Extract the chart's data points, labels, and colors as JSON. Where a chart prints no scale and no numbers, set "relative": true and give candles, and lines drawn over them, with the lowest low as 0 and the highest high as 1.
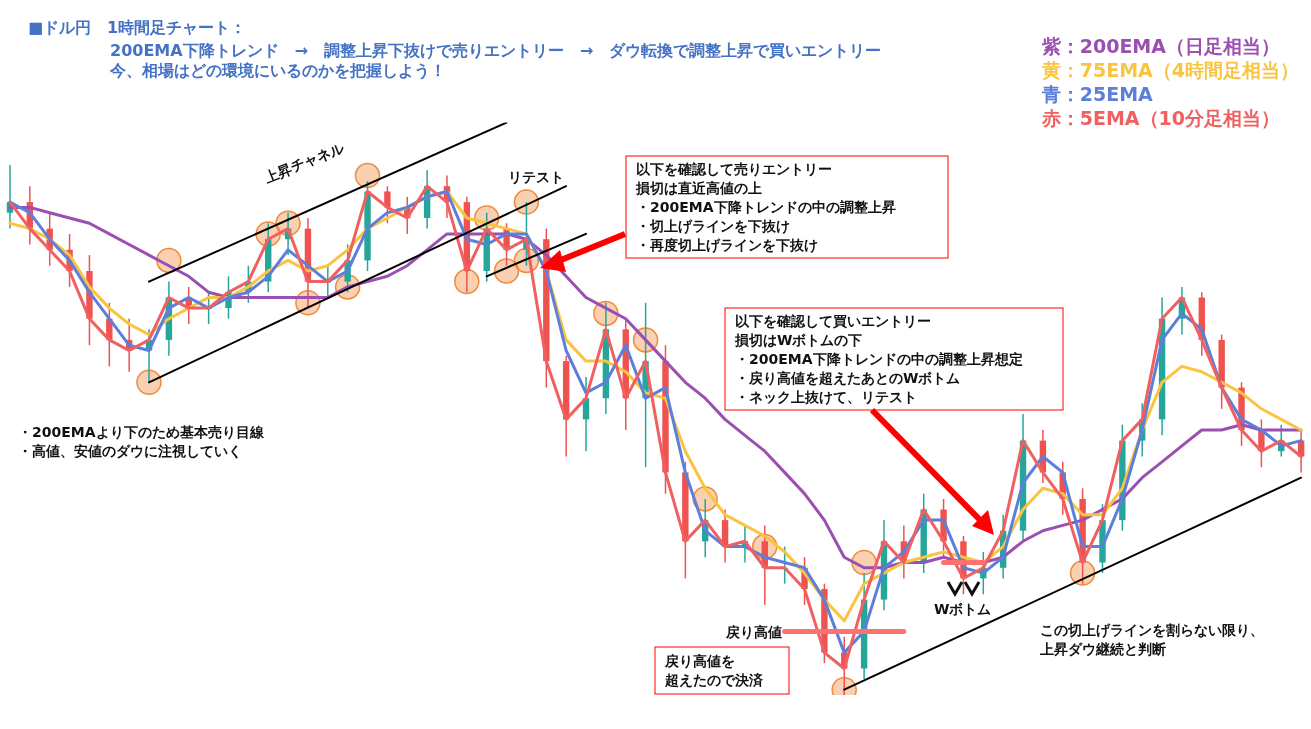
{
  "chart_data": {
    "type": "candlestick",
    "title": "■ドル円　1時間足チャート：",
    "subtitle": "200EMA下降トレンド　→　調整上昇下抜けで売りエントリー　→　ダウ転換で調整上昇で買いエントリー",
    "relative": true,
    "legend": "top right",
    "categories": [
      null,
      null,
      null,
      null,
      null,
      null,
      null,
      null,
      null,
      null,
      null,
      null,
      null,
      null,
      null,
      null,
      null,
      null,
      null,
      null,
      null,
      null,
      null,
      null,
      null,
      null,
      null,
      null,
      null,
      null,
      null,
      null,
      null,
      null,
      null,
      null,
      null,
      null,
      null,
      null,
      null,
      null,
      null,
      null,
      null,
      null,
      null,
      null,
      null,
      null,
      null,
      null,
      null,
      null,
      null,
      null,
      null,
      null,
      null,
      null,
      null,
      null,
      null,
      null,
      null,
      null
    ],
    "ohlc": [
      [
        0.91,
        1.0,
        0.88,
        0.93
      ],
      [
        0.93,
        0.96,
        0.85,
        0.88
      ],
      [
        0.88,
        0.91,
        0.81,
        0.84
      ],
      [
        0.84,
        0.87,
        0.77,
        0.8
      ],
      [
        0.8,
        0.83,
        0.66,
        0.71
      ],
      [
        0.71,
        0.74,
        0.62,
        0.67
      ],
      [
        0.67,
        0.71,
        0.61,
        0.65
      ],
      [
        0.65,
        0.69,
        0.59,
        0.67
      ],
      [
        0.67,
        0.78,
        0.64,
        0.75
      ],
      [
        0.75,
        0.77,
        0.7,
        0.73
      ],
      [
        0.73,
        0.76,
        0.7,
        0.73
      ],
      [
        0.73,
        0.79,
        0.71,
        0.76
      ],
      [
        0.76,
        0.81,
        0.74,
        0.78
      ],
      [
        0.78,
        0.89,
        0.76,
        0.86
      ],
      [
        0.86,
        0.91,
        0.83,
        0.88
      ],
      [
        0.88,
        0.9,
        0.73,
        0.78
      ],
      [
        0.78,
        0.81,
        0.75,
        0.78
      ],
      [
        0.78,
        0.85,
        0.76,
        0.82
      ],
      [
        0.82,
        0.97,
        0.8,
        0.95
      ],
      [
        0.95,
        0.96,
        0.89,
        0.92
      ],
      [
        0.92,
        0.94,
        0.87,
        0.9
      ],
      [
        0.9,
        0.99,
        0.88,
        0.96
      ],
      [
        0.96,
        0.98,
        0.9,
        0.93
      ],
      [
        0.93,
        0.94,
        0.76,
        0.8
      ],
      [
        0.8,
        0.91,
        0.78,
        0.88
      ],
      [
        0.88,
        0.89,
        0.81,
        0.84
      ],
      [
        0.84,
        0.93,
        0.81,
        0.86
      ],
      [
        0.86,
        0.88,
        0.58,
        0.63
      ],
      [
        0.63,
        0.64,
        0.45,
        0.52
      ],
      [
        0.52,
        0.6,
        0.46,
        0.56
      ],
      [
        0.56,
        0.74,
        0.53,
        0.69
      ],
      [
        0.69,
        0.71,
        0.5,
        0.56
      ],
      [
        0.56,
        0.74,
        0.43,
        0.63
      ],
      [
        0.63,
        0.66,
        0.38,
        0.42
      ],
      [
        0.42,
        0.44,
        0.22,
        0.29
      ],
      [
        0.29,
        0.37,
        0.26,
        0.33
      ],
      [
        0.33,
        0.35,
        0.25,
        0.28
      ],
      [
        0.28,
        0.32,
        0.25,
        0.29
      ],
      [
        0.29,
        0.32,
        0.17,
        0.24
      ],
      [
        0.24,
        0.28,
        0.21,
        0.24
      ],
      [
        0.24,
        0.26,
        0.17,
        0.2
      ],
      [
        0.2,
        0.21,
        0.06,
        0.08
      ],
      [
        0.08,
        0.11,
        0.0,
        0.05
      ],
      [
        0.05,
        0.23,
        0.03,
        0.18
      ],
      [
        0.18,
        0.33,
        0.16,
        0.29
      ],
      [
        0.29,
        0.32,
        0.22,
        0.25
      ],
      [
        0.25,
        0.38,
        0.23,
        0.35
      ],
      [
        0.35,
        0.37,
        0.26,
        0.29
      ],
      [
        0.29,
        0.3,
        0.19,
        0.22
      ],
      [
        0.22,
        0.27,
        0.19,
        0.24
      ],
      [
        0.24,
        0.34,
        0.22,
        0.31
      ],
      [
        0.31,
        0.53,
        0.29,
        0.48
      ],
      [
        0.48,
        0.5,
        0.4,
        0.42
      ],
      [
        0.42,
        0.44,
        0.34,
        0.37
      ],
      [
        0.37,
        0.39,
        0.21,
        0.25
      ],
      [
        0.25,
        0.36,
        0.23,
        0.33
      ],
      [
        0.33,
        0.51,
        0.31,
        0.48
      ],
      [
        0.48,
        0.55,
        0.45,
        0.52
      ],
      [
        0.52,
        0.75,
        0.49,
        0.71
      ],
      [
        0.71,
        0.77,
        0.68,
        0.75
      ],
      [
        0.75,
        0.76,
        0.64,
        0.67
      ],
      [
        0.67,
        0.68,
        0.54,
        0.58
      ],
      [
        0.58,
        0.59,
        0.47,
        0.5
      ],
      [
        0.5,
        0.52,
        0.43,
        0.46
      ],
      [
        0.46,
        0.51,
        0.45,
        0.48
      ],
      [
        0.48,
        0.5,
        0.42,
        0.45
      ]
    ],
    "series": [
      {
        "type": "line",
        "name": "紫：200EMA（日足相当）",
        "color": "#9b4fb0",
        "values": [
          0.92,
          0.92,
          0.91,
          0.9,
          0.89,
          0.87,
          0.85,
          0.83,
          0.81,
          0.79,
          0.76,
          0.75,
          0.75,
          0.75,
          0.75,
          0.75,
          0.75,
          0.77,
          0.78,
          0.79,
          0.81,
          0.84,
          0.87,
          0.87,
          0.87,
          0.87,
          0.86,
          0.83,
          0.79,
          0.75,
          0.73,
          0.71,
          0.67,
          0.63,
          0.59,
          0.56,
          0.52,
          0.49,
          0.46,
          0.42,
          0.38,
          0.33,
          0.26,
          0.24,
          0.24,
          0.25,
          0.25,
          0.26,
          0.25,
          0.25,
          0.26,
          0.29,
          0.31,
          0.32,
          0.33,
          0.35,
          0.37,
          0.41,
          0.44,
          0.47,
          0.5,
          0.5,
          0.51,
          0.5,
          0.5,
          0.5
        ]
      },
      {
        "type": "line",
        "name": "黄：75EMA（4時間足相当）",
        "color": "#f9c440",
        "values": [
          0.89,
          0.88,
          0.86,
          0.83,
          0.77,
          0.73,
          0.7,
          0.68,
          0.71,
          0.73,
          0.75,
          0.75,
          0.77,
          0.8,
          0.82,
          0.8,
          0.81,
          0.84,
          0.88,
          0.9,
          0.92,
          0.94,
          0.95,
          0.9,
          0.89,
          0.88,
          0.87,
          0.8,
          0.67,
          0.63,
          0.63,
          0.61,
          0.57,
          0.56,
          0.46,
          0.39,
          0.34,
          0.32,
          0.3,
          0.27,
          0.23,
          0.18,
          0.14,
          0.21,
          0.23,
          0.25,
          0.26,
          0.27,
          0.26,
          0.25,
          0.28,
          0.35,
          0.39,
          0.38,
          0.34,
          0.34,
          0.39,
          0.5,
          0.59,
          0.62,
          0.61,
          0.59,
          0.57,
          0.54,
          0.52,
          0.5
        ]
      },
      {
        "type": "line",
        "name": "青：25EMA",
        "color": "#5b7fdb",
        "values": [
          0.93,
          0.91,
          0.86,
          0.82,
          0.76,
          0.71,
          0.66,
          0.65,
          0.73,
          0.75,
          0.73,
          0.75,
          0.76,
          0.79,
          0.84,
          0.81,
          0.78,
          0.8,
          0.88,
          0.91,
          0.92,
          0.94,
          0.95,
          0.86,
          0.85,
          0.87,
          0.87,
          0.8,
          0.65,
          0.57,
          0.59,
          0.66,
          0.56,
          0.58,
          0.42,
          0.31,
          0.28,
          0.28,
          0.26,
          0.25,
          0.24,
          0.18,
          0.08,
          0.12,
          0.24,
          0.27,
          0.33,
          0.33,
          0.24,
          0.23,
          0.26,
          0.4,
          0.45,
          0.42,
          0.28,
          0.28,
          0.37,
          0.5,
          0.67,
          0.72,
          0.69,
          0.58,
          0.52,
          0.5,
          0.47,
          0.48
        ]
      },
      {
        "type": "line",
        "name": "赤：5EMA（10分足相当）",
        "color": "#f06060",
        "values": [
          0.93,
          0.88,
          0.84,
          0.8,
          0.71,
          0.67,
          0.65,
          0.67,
          0.75,
          0.73,
          0.73,
          0.76,
          0.78,
          0.86,
          0.88,
          0.78,
          0.78,
          0.82,
          0.95,
          0.92,
          0.9,
          0.96,
          0.93,
          0.8,
          0.88,
          0.84,
          0.86,
          0.63,
          0.52,
          0.56,
          0.69,
          0.56,
          0.63,
          0.42,
          0.29,
          0.33,
          0.28,
          0.29,
          0.24,
          0.24,
          0.2,
          0.08,
          0.05,
          0.18,
          0.29,
          0.25,
          0.35,
          0.29,
          0.22,
          0.24,
          0.31,
          0.48,
          0.42,
          0.37,
          0.25,
          0.33,
          0.48,
          0.52,
          0.71,
          0.75,
          0.67,
          0.58,
          0.5,
          0.46,
          0.48,
          0.45
        ]
      },
      {
        "type": "line",
        "color": "#000000",
        "values": [
          null,
          null,
          null,
          null,
          null,
          null,
          null,
          0.78,
          null,
          null,
          null,
          null,
          null,
          null,
          null,
          null,
          null,
          null,
          null,
          null,
          null,
          null,
          null,
          null,
          null,
          1.08,
          null,
          null,
          null,
          null,
          null,
          null,
          null,
          null,
          null,
          null,
          null,
          null,
          null,
          null,
          null,
          null,
          null,
          null,
          null,
          null,
          null,
          null,
          null,
          null,
          null,
          null,
          null,
          null,
          null,
          null,
          null,
          null,
          null,
          null,
          null,
          null,
          null,
          null,
          null,
          null
        ]
      },
      {
        "type": "line",
        "color": "#000000",
        "values": [
          null,
          null,
          null,
          null,
          null,
          null,
          null,
          0.59,
          null,
          null,
          null,
          null,
          null,
          null,
          null,
          null,
          null,
          null,
          null,
          null,
          null,
          null,
          null,
          null,
          null,
          null,
          null,
          null,
          0.96,
          null,
          null,
          null,
          null,
          null,
          null,
          null,
          null,
          null,
          null,
          null,
          null,
          null,
          null,
          null,
          null,
          null,
          null,
          null,
          null,
          null,
          null,
          null,
          null,
          null,
          null,
          null,
          null,
          null,
          null,
          null,
          null,
          null,
          null,
          null,
          null,
          null
        ]
      },
      {
        "type": "line",
        "color": "#000000",
        "values": [
          null,
          null,
          null,
          null,
          null,
          null,
          null,
          null,
          null,
          null,
          null,
          null,
          null,
          null,
          null,
          null,
          null,
          null,
          null,
          null,
          null,
          null,
          null,
          null,
          0.79,
          null,
          null,
          null,
          null,
          0.87,
          null,
          null,
          null,
          null,
          null,
          null,
          null,
          null,
          null,
          null,
          null,
          null,
          null,
          null,
          null,
          null,
          null,
          null,
          null,
          null,
          null,
          null,
          null,
          null,
          null,
          null,
          null,
          null,
          null,
          null,
          null,
          null,
          null,
          null,
          null,
          null
        ]
      },
      {
        "type": "line",
        "color": "#000000",
        "values": [
          null,
          null,
          null,
          null,
          null,
          null,
          null,
          null,
          null,
          null,
          null,
          null,
          null,
          null,
          null,
          null,
          null,
          null,
          null,
          null,
          null,
          null,
          null,
          null,
          null,
          null,
          null,
          null,
          null,
          null,
          null,
          null,
          null,
          null,
          null,
          null,
          null,
          null,
          null,
          null,
          null,
          null,
          0.01,
          null,
          null,
          null,
          null,
          null,
          null,
          null,
          null,
          null,
          null,
          null,
          null,
          null,
          null,
          null,
          null,
          null,
          null,
          null,
          null,
          null,
          null,
          0.41
        ]
      },
      {
        "type": "line",
        "color": "#ff7070",
        "values": [
          null,
          null,
          null,
          null,
          null,
          null,
          null,
          null,
          null,
          null,
          null,
          null,
          null,
          null,
          null,
          null,
          null,
          null,
          null,
          null,
          null,
          null,
          null,
          null,
          null,
          null,
          null,
          null,
          null,
          null,
          null,
          null,
          null,
          null,
          null,
          null,
          null,
          null,
          null,
          0.12,
          null,
          null,
          null,
          null,
          null,
          0.12,
          null,
          null,
          null,
          null,
          null,
          null,
          null,
          null,
          null,
          null,
          null,
          null,
          null,
          null,
          null,
          null,
          null,
          null,
          null,
          null
        ]
      },
      {
        "type": "line",
        "color": "#ff7070",
        "values": [
          null,
          null,
          null,
          null,
          null,
          null,
          null,
          null,
          null,
          null,
          null,
          null,
          null,
          null,
          null,
          null,
          null,
          null,
          null,
          null,
          null,
          null,
          null,
          null,
          null,
          null,
          null,
          null,
          null,
          null,
          null,
          null,
          null,
          null,
          null,
          null,
          null,
          null,
          null,
          null,
          null,
          null,
          null,
          null,
          null,
          null,
          null,
          0.25,
          null,
          0.25,
          null,
          null,
          null,
          null,
          null,
          null,
          null,
          null,
          null,
          null,
          null,
          null,
          null,
          null,
          null,
          null
        ]
      },
      {
        "type": "scatter",
        "marker": "circle",
        "color": "#f08a3c",
        "values": [
          null,
          null,
          null,
          null,
          null,
          null,
          null,
          0.59,
          0.82,
          null,
          null,
          null,
          null,
          0.87,
          0.89,
          0.74,
          null,
          0.77,
          0.98,
          null,
          null,
          null,
          null,
          0.78,
          0.9,
          0.8,
          0.82,
          null,
          null,
          null,
          0.72,
          null,
          0.67,
          null,
          null,
          0.37,
          null,
          null,
          0.28,
          null,
          null,
          null,
          0.01,
          0.25,
          null,
          null,
          null,
          null,
          null,
          null,
          null,
          null,
          null,
          null,
          0.23,
          null,
          null,
          null,
          null,
          null,
          null,
          null,
          null,
          null,
          null,
          null
        ]
      },
      {
        "type": "scatter",
        "marker": "circle",
        "color": "#f08a3c",
        "values": [
          null,
          null,
          null,
          null,
          null,
          null,
          null,
          null,
          null,
          null,
          null,
          null,
          null,
          null,
          null,
          null,
          null,
          null,
          null,
          null,
          null,
          null,
          null,
          null,
          null,
          null,
          0.93,
          null,
          null,
          null,
          null,
          null,
          null,
          null,
          null,
          null,
          null,
          null,
          null,
          null,
          null,
          null,
          null,
          null,
          null,
          null,
          null,
          null,
          null,
          null,
          null,
          null,
          null,
          null,
          null,
          null,
          null,
          null,
          null,
          null,
          null,
          null,
          null,
          null,
          null,
          null
        ]
      }
    ],
    "annotations": [
      "上昇チャネル",
      "リテスト",
      "以下を確認して売りエントリー",
      "損切は直近高値の上",
      "・200EMA下降トレンドの中の調整上昇",
      "・切上げラインを下抜け",
      "・再度切上げラインを下抜け",
      "以下を確認して買いエントリー",
      "損切はWボトムの下",
      "・200EMA下降トレンドの中の調整上昇想定",
      "・戻り高値を超えたあとのWボトム",
      "・ネック上抜けて、リテスト",
      "・200EMAより下のため基本売り目線",
      "・高値、安値のダウに注視していく",
      "戻り高値",
      "戻り高値を",
      "超えたので決済",
      "Wボトム",
      "この切上げラインを割らない限り、",
      "上昇ダウ継続と判断",
      "今、相場はどの環境にいるのかを把握しよう！"
    ]
  }
}
